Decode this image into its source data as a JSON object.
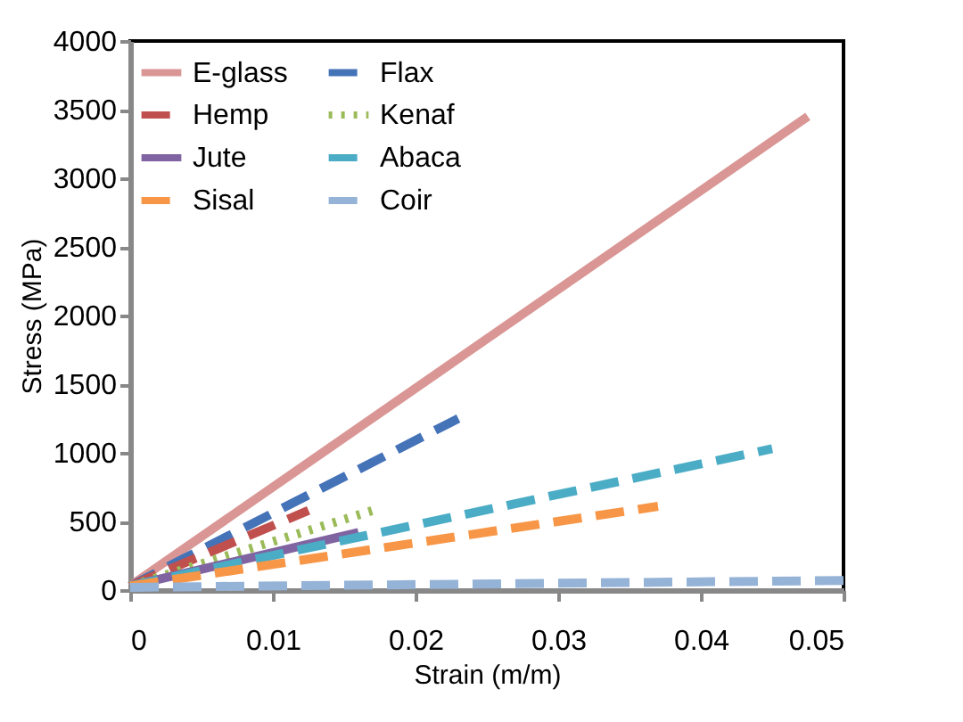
{
  "chart_data": {
    "type": "line",
    "xlabel": "Strain (m/m)",
    "ylabel": "Stress (MPa)",
    "xlim": [
      0,
      0.05
    ],
    "xticks": [
      0,
      0.01,
      0.02,
      0.03,
      0.04,
      0.05
    ],
    "ylim": [
      0,
      4000
    ],
    "yticks": [
      0,
      500,
      1000,
      1500,
      2000,
      2500,
      3000,
      3500,
      4000
    ],
    "grid": false,
    "legend": "top left",
    "marker": "none",
    "series": [
      {
        "name": "E-glass",
        "color": "#d99694",
        "line_style": "solid",
        "x": [
          0,
          0.0475
        ],
        "values": [
          30,
          3450
        ]
      },
      {
        "name": "Flax",
        "color": "#4573b8",
        "line_style": "dashed",
        "x": [
          0,
          0.023
        ],
        "values": [
          30,
          1250
        ]
      },
      {
        "name": "Hemp",
        "color": "#c0504d",
        "line_style": "dashed",
        "x": [
          0,
          0.0125
        ],
        "values": [
          30,
          580
        ]
      },
      {
        "name": "Kenaf",
        "color": "#9bbb59",
        "line_style": "dotted",
        "x": [
          0,
          0.017
        ],
        "values": [
          30,
          580
        ]
      },
      {
        "name": "Jute",
        "color": "#8064a2",
        "line_style": "solid",
        "x": [
          0,
          0.016
        ],
        "values": [
          30,
          420
        ]
      },
      {
        "name": "Abaca",
        "color": "#4bacc6",
        "line_style": "dashed",
        "x": [
          0,
          0.045
        ],
        "values": [
          30,
          1030
        ]
      },
      {
        "name": "Sisal",
        "color": "#f79646",
        "line_style": "dashed",
        "x": [
          0,
          0.037
        ],
        "values": [
          30,
          610
        ]
      },
      {
        "name": "Coir",
        "color": "#95b3d7",
        "line_style": "dashed",
        "x": [
          0,
          0.05
        ],
        "values": [
          20,
          70
        ]
      }
    ]
  }
}
